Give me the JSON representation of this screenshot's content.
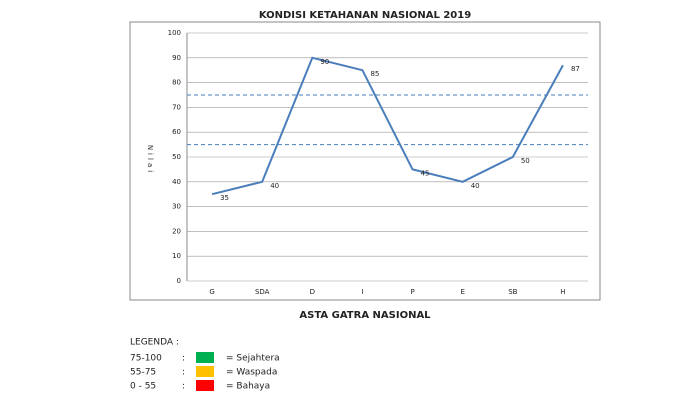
{
  "chart_data": {
    "type": "line",
    "title": "KONDISI KETAHANAN NASIONAL 2019",
    "x_label": "ASTA GATRA NASIONAL",
    "y_label": "Nilai",
    "categories": [
      "G",
      "SDA",
      "D",
      "I",
      "P",
      "E",
      "SB",
      "H"
    ],
    "series": [
      {
        "name": "Nilai",
        "color": "#4a7ebb",
        "values": [
          35,
          40,
          90,
          85,
          45,
          40,
          50,
          87
        ]
      }
    ],
    "ylim": [
      0,
      100
    ],
    "yticks": [
      0,
      10,
      20,
      30,
      40,
      50,
      60,
      70,
      80,
      90,
      100
    ],
    "grid": true,
    "reference_lines": [
      {
        "value": 75,
        "color": "#4a7ebb"
      },
      {
        "value": 55,
        "color": "#4a7ebb"
      }
    ],
    "legend": {
      "title": "LEGENDA :",
      "items": [
        {
          "range": "75-100",
          "separator": ":",
          "color": "#00b050",
          "label": "= Sejahtera"
        },
        {
          "range": "55-75",
          "separator": ":",
          "color": "#ffc000",
          "label": "= Waspada"
        },
        {
          "range": "0 - 55",
          "separator": ":",
          "color": "#ff0000",
          "label": "= Bahaya"
        }
      ]
    }
  }
}
